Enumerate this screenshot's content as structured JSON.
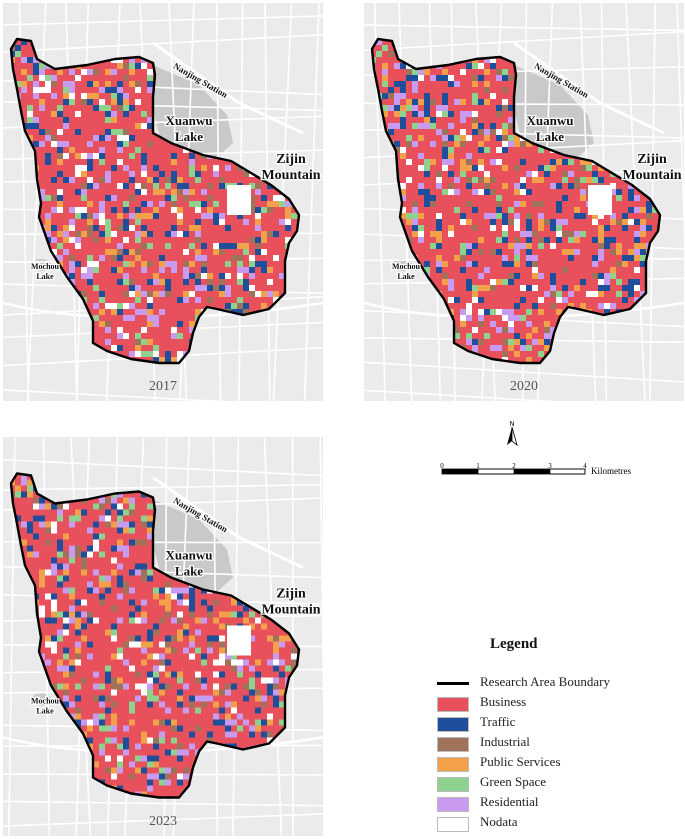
{
  "maps": [
    {
      "year": "2017",
      "seed": 11
    },
    {
      "year": "2020",
      "seed": 37
    },
    {
      "year": "2023",
      "seed": 73
    }
  ],
  "places": {
    "station": "Nanjing Station",
    "lake_line1": "Xuanwu",
    "lake_line2": "Lake",
    "mountain_line1": "Zijin",
    "mountain_line2": "Mountain",
    "mochou_line1": "Mochou",
    "mochou_line2": "Lake"
  },
  "north_arrow": {
    "label": "N",
    "icon": "north-arrow-icon"
  },
  "scale_bar": {
    "ticks": [
      "0",
      "1",
      "2",
      "3",
      "4"
    ],
    "unit": "Kilometres"
  },
  "legend": {
    "title": "Legend",
    "boundary_label": "Research Area Boundary",
    "items": [
      {
        "label": "Business",
        "color": "#e8505b"
      },
      {
        "label": "Traffic",
        "color": "#1f4e9a"
      },
      {
        "label": "Industrial",
        "color": "#a0725a"
      },
      {
        "label": "Public Services",
        "color": "#f3a04a"
      },
      {
        "label": "Green Space",
        "color": "#8fd18f"
      },
      {
        "label": "Residential",
        "color": "#c89af0"
      },
      {
        "label": "Nodata",
        "color": "#ffffff"
      }
    ]
  },
  "colors": {
    "basemap": "#ebebeb",
    "roads": "#ffffff",
    "water": "#c9c9c9",
    "boundary": "#000000"
  }
}
